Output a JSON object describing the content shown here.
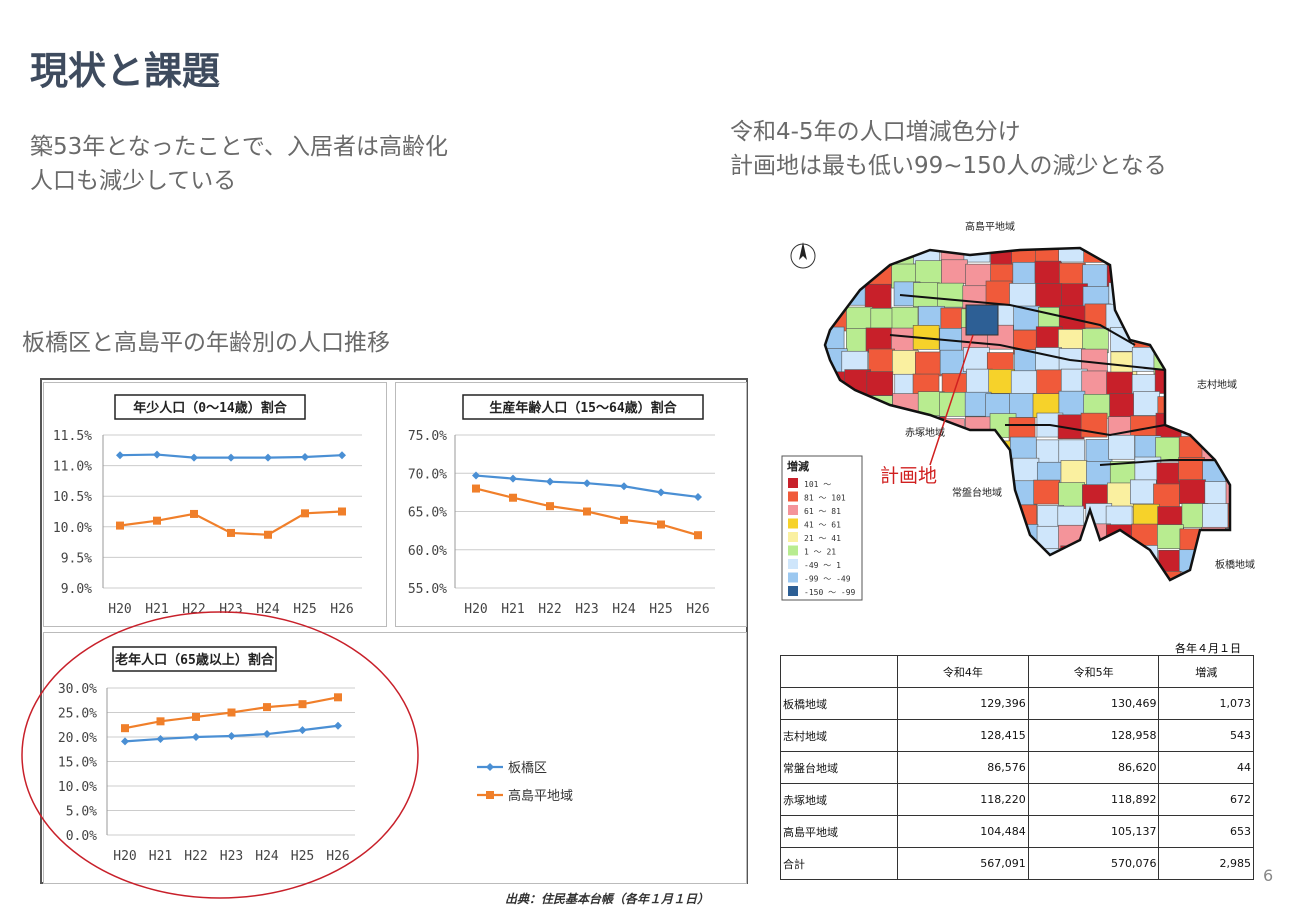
{
  "title": "現状と課題",
  "lead_left": [
    "築53年となったことで、入居者は高齢化",
    "人口も減少している"
  ],
  "lead_right": [
    "令和4-5年の人口増減色分け",
    "計画地は最も低い99~150人の減少となる"
  ],
  "chart_section_title": "板橋区と高島平の年齢別の人口推移",
  "source": "出典：住民基本台帳（各年１月１日）",
  "colors": {
    "blue": "#4a8fd4",
    "orange": "#f07f2a",
    "circle": "#c8202a"
  },
  "chart_data": [
    {
      "type": "line",
      "title": "年少人口（0〜14歳）割合",
      "categories": [
        "H20",
        "H21",
        "H22",
        "H23",
        "H24",
        "H25",
        "H26"
      ],
      "ylim": [
        9.0,
        11.5
      ],
      "yticks": [
        "11.5%",
        "11.0%",
        "10.5%",
        "10.0%",
        "9.5%",
        "9.0%"
      ],
      "series": [
        {
          "name": "板橋区",
          "values": [
            11.17,
            11.18,
            11.13,
            11.13,
            11.13,
            11.14,
            11.17
          ]
        },
        {
          "name": "高島平地域",
          "values": [
            10.02,
            10.1,
            10.21,
            9.9,
            9.87,
            10.22,
            10.25
          ]
        }
      ]
    },
    {
      "type": "line",
      "title": "生産年齢人口（15〜64歳）割合",
      "categories": [
        "H20",
        "H21",
        "H22",
        "H23",
        "H24",
        "H25",
        "H26"
      ],
      "ylim": [
        55,
        75
      ],
      "yticks": [
        "75.0%",
        "70.0%",
        "65.0%",
        "60.0%",
        "55.0%"
      ],
      "series": [
        {
          "name": "板橋区",
          "values": [
            69.7,
            69.3,
            68.9,
            68.7,
            68.3,
            67.5,
            66.9
          ]
        },
        {
          "name": "高島平地域",
          "values": [
            68.0,
            66.8,
            65.7,
            65.0,
            63.9,
            63.3,
            61.9
          ]
        }
      ]
    },
    {
      "type": "line",
      "title": "老年人口（65歳以上）割合",
      "categories": [
        "H20",
        "H21",
        "H22",
        "H23",
        "H24",
        "H25",
        "H26"
      ],
      "ylim": [
        0,
        30
      ],
      "yticks": [
        "30.0%",
        "25.0%",
        "20.0%",
        "15.0%",
        "10.0%",
        "5.0%",
        "0.0%"
      ],
      "series": [
        {
          "name": "板橋区",
          "values": [
            19.1,
            19.6,
            20.0,
            20.2,
            20.6,
            21.4,
            22.3
          ]
        },
        {
          "name": "高島平地域",
          "values": [
            21.8,
            23.2,
            24.1,
            25.0,
            26.1,
            26.7,
            28.1
          ]
        }
      ]
    }
  ],
  "legend": [
    "板橋区",
    "高島平地域"
  ],
  "map": {
    "region_labels": [
      "高島平地域",
      "志村地域",
      "赤塚地域",
      "常盤台地域",
      "板橋地域"
    ],
    "site_label": "計画地",
    "legend_title": "増減",
    "legend_items": [
      {
        "label": "101 〜",
        "color": "#c8202a"
      },
      {
        "label": "81 〜 101",
        "color": "#f05a3a"
      },
      {
        "label": "61 〜 81",
        "color": "#f4949a"
      },
      {
        "label": "41 〜 61",
        "color": "#f6d22a"
      },
      {
        "label": "21 〜 41",
        "color": "#faf0a0"
      },
      {
        "label": "1 〜 21",
        "color": "#b8ec90"
      },
      {
        "label": "-49 〜 1",
        "color": "#cfe6fb"
      },
      {
        "label": "-99 〜 -49",
        "color": "#9cc8f0"
      },
      {
        "label": "-150 〜 -99",
        "color": "#2d5f95"
      }
    ]
  },
  "table": {
    "note": "各年４月１日",
    "headers": [
      "",
      "令和4年",
      "令和5年",
      "増減"
    ],
    "rows": [
      [
        "板橋地域",
        "129,396",
        "130,469",
        "1,073"
      ],
      [
        "志村地域",
        "128,415",
        "128,958",
        "543"
      ],
      [
        "常盤台地域",
        "86,576",
        "86,620",
        "44"
      ],
      [
        "赤塚地域",
        "118,220",
        "118,892",
        "672"
      ],
      [
        "高島平地域",
        "104,484",
        "105,137",
        "653"
      ],
      [
        "合計",
        "567,091",
        "570,076",
        "2,985"
      ]
    ]
  },
  "page_number": "6"
}
